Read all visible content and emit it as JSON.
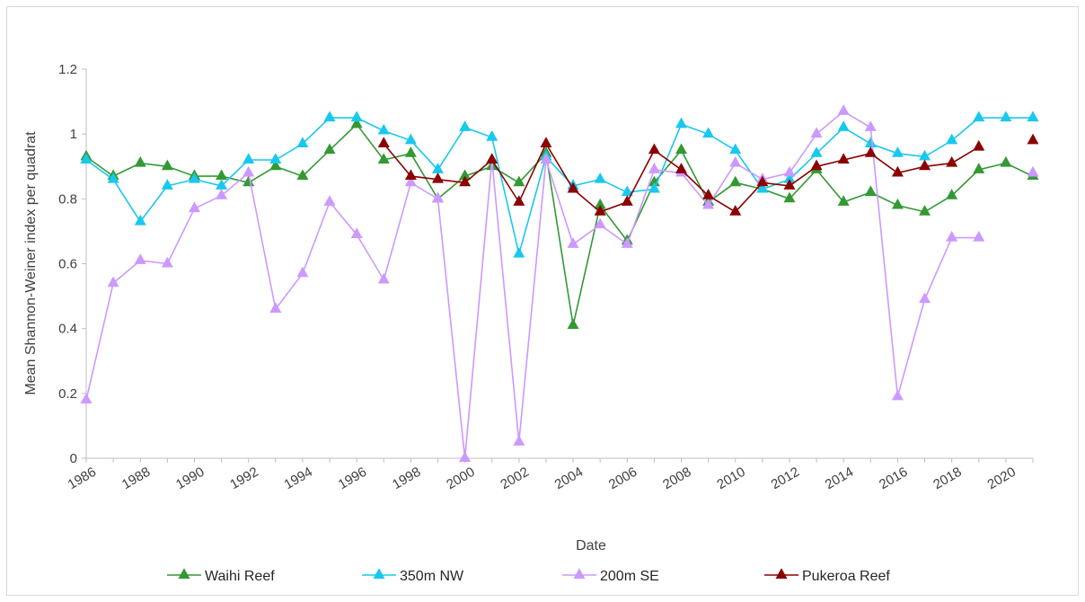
{
  "chart_data": {
    "type": "line",
    "title": "",
    "xlabel": "Date",
    "ylabel": "Mean Shannon-Weiner index per quadrat",
    "ylim": [
      0,
      1.2
    ],
    "yticks": [
      "0",
      "0.2",
      "0.4",
      "0.6",
      "0.8",
      "1",
      "1.2"
    ],
    "xlim": [
      1986,
      2021
    ],
    "xticks": [
      "1986",
      "1988",
      "1990",
      "1992",
      "1994",
      "1996",
      "1998",
      "2000",
      "2002",
      "2004",
      "2006",
      "2008",
      "2010",
      "2012",
      "2014",
      "2016",
      "2018",
      "2020"
    ],
    "grid": false,
    "legend_position": "bottom",
    "series": [
      {
        "name": "Waihi Reef",
        "color": "#339933",
        "marker": "triangle",
        "x": [
          1986,
          1987,
          1988,
          1989,
          1990,
          1991,
          1992,
          1993,
          1994,
          1995,
          1996,
          1997,
          1998,
          1999,
          2000,
          2001,
          2002,
          2003,
          2004,
          2005,
          2006,
          2007,
          2008,
          2009,
          2010,
          2011,
          2012,
          2013,
          2014,
          2015,
          2016,
          2017,
          2018,
          2019,
          2020,
          2021
        ],
        "y": [
          0.93,
          0.87,
          0.91,
          0.9,
          0.87,
          0.87,
          0.85,
          0.9,
          0.87,
          0.95,
          1.03,
          0.92,
          0.94,
          0.8,
          0.87,
          0.9,
          0.85,
          0.94,
          0.41,
          0.78,
          0.67,
          0.85,
          0.95,
          0.79,
          0.85,
          0.83,
          0.8,
          0.89,
          0.79,
          0.82,
          0.78,
          0.76,
          0.81,
          0.89,
          0.91,
          0.87
        ]
      },
      {
        "name": "350m NW",
        "color": "#18c8ee",
        "marker": "triangle",
        "x": [
          1986,
          1987,
          1988,
          1989,
          1990,
          1991,
          1992,
          1993,
          1994,
          1995,
          1996,
          1997,
          1998,
          1999,
          2000,
          2001,
          2002,
          2003,
          2004,
          2005,
          2006,
          2007,
          2008,
          2009,
          2010,
          2011,
          2012,
          2013,
          2014,
          2015,
          2016,
          2017,
          2018,
          2019,
          2020,
          2021
        ],
        "y": [
          0.92,
          0.86,
          0.73,
          0.84,
          0.86,
          0.84,
          0.92,
          0.92,
          0.97,
          1.05,
          1.05,
          1.01,
          0.98,
          0.89,
          1.02,
          0.99,
          0.63,
          0.93,
          0.84,
          0.86,
          0.82,
          0.83,
          1.03,
          1.0,
          0.95,
          0.83,
          0.86,
          0.94,
          1.02,
          0.97,
          0.94,
          0.93,
          0.98,
          1.05,
          1.05,
          1.05
        ]
      },
      {
        "name": "200m SE",
        "color": "#cc99ff",
        "marker": "triangle",
        "x": [
          1986,
          1987,
          1988,
          1989,
          1990,
          1991,
          1992,
          1993,
          1994,
          1995,
          1996,
          1997,
          1998,
          1999,
          2000,
          2001,
          2002,
          2003,
          2004,
          2005,
          2006,
          2007,
          2008,
          2009,
          2010,
          2011,
          2012,
          2013,
          2014,
          2015,
          2016,
          2017,
          2018,
          2019,
          2020,
          2021
        ],
        "y": [
          0.18,
          0.54,
          0.61,
          0.6,
          0.77,
          0.81,
          0.88,
          0.46,
          0.57,
          0.79,
          0.69,
          0.55,
          0.85,
          0.8,
          0.0,
          0.92,
          0.05,
          0.92,
          0.66,
          0.72,
          0.66,
          0.89,
          0.88,
          0.78,
          0.91,
          0.86,
          0.88,
          1.0,
          1.07,
          1.02,
          0.19,
          0.49,
          0.68,
          0.68,
          null,
          0.88
        ]
      },
      {
        "name": "Pukeroa Reef",
        "color": "#8b0000",
        "marker": "triangle",
        "x": [
          1997,
          1998,
          1999,
          2000,
          2001,
          2002,
          2003,
          2004,
          2005,
          2006,
          2007,
          2008,
          2009,
          2010,
          2011,
          2012,
          2013,
          2014,
          2015,
          2016,
          2017,
          2018,
          2019,
          2020,
          2021
        ],
        "y": [
          0.97,
          0.87,
          0.86,
          0.85,
          0.92,
          0.79,
          0.97,
          0.83,
          0.76,
          0.79,
          0.95,
          0.89,
          0.81,
          0.76,
          0.85,
          0.84,
          0.9,
          0.92,
          0.94,
          0.88,
          0.9,
          0.91,
          0.96,
          null,
          0.98
        ]
      }
    ]
  }
}
